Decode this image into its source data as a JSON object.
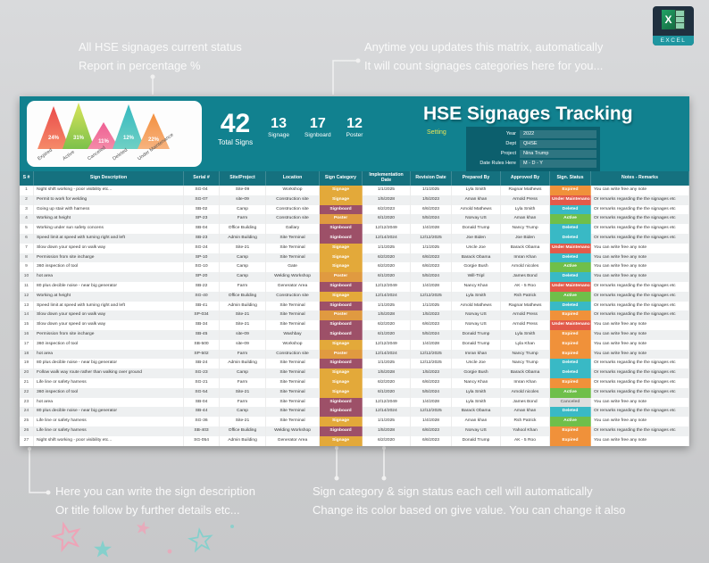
{
  "annotations": {
    "top_left_line1": "All HSE signages current status",
    "top_left_line2": "Report in percentage %",
    "top_right_line1": "Anytime you updates this matrix, automatically",
    "top_right_line2": "It will count signages categories here for you...",
    "bottom_left_line1": "Here you can write the sign description",
    "bottom_left_line2": "Or title follow by further details etc...",
    "bottom_right_line1": "Sign category & sign status each cell will automatically",
    "bottom_right_line2": "Change its color based on give value. You can change it also"
  },
  "logo": {
    "brand": "EXCEL",
    "x_glyph": "X"
  },
  "header": {
    "title": "HSE Signages Tracking",
    "setting_label": "Setting",
    "settings": [
      {
        "label": "Year",
        "value": "2022"
      },
      {
        "label": "Dept",
        "value": "QHSE"
      },
      {
        "label": "Project",
        "value": "Nina Trump"
      },
      {
        "label": "Date Rules Here",
        "value": "M - D - Y"
      }
    ],
    "stats": [
      {
        "value": "42",
        "label": "Total Signs"
      },
      {
        "value": "13",
        "label": "Signage"
      },
      {
        "value": "17",
        "label": "Signboard"
      },
      {
        "value": "12",
        "label": "Poster"
      }
    ]
  },
  "chart_data": {
    "type": "bar",
    "title": "Signage status distribution (%)",
    "categories": [
      "Expired",
      "Active",
      "Canceled",
      "Deleted",
      "Under Maintenance"
    ],
    "values": [
      24,
      31,
      11,
      12,
      22
    ],
    "value_labels": [
      "24%",
      "31%",
      "11%",
      "12%",
      "22%"
    ],
    "heights": [
      48,
      52,
      30,
      50,
      40
    ],
    "colors_top": [
      "#ea4b4b",
      "#d9e45a",
      "#ee5f93",
      "#35b9c0",
      "#f3903f"
    ],
    "colors_bottom": [
      "#f58a68",
      "#7cc14b",
      "#f48aa8",
      "#6fd0c4",
      "#f7b37f"
    ]
  },
  "colors": {
    "header_teal": "#11818f",
    "table_header": "#15717f",
    "category": {
      "Signage": "#e3a93a",
      "Signboard": "#9d5068",
      "Poster": "#e09a40"
    },
    "status": {
      "Active": "#6fbf4a",
      "Expired": "#f0913a",
      "Deleted": "#39b9c5",
      "Under Maintenance": "#e25a4a",
      "Canceled": "#dedede"
    }
  },
  "table": {
    "headers": [
      "S #",
      "Sign Description",
      "Serial #",
      "Site/Project",
      "Location",
      "Sign Category",
      "Implementation Date",
      "Revision Date",
      "Prepared By",
      "Approved By",
      "Sign. Status",
      "Notes - Remarks"
    ],
    "rows": [
      [
        "1",
        "Night shift working - poor visibility etc...",
        "SG-04",
        "Site-09",
        "Workshop",
        "Signage",
        "1/1/2025",
        "1/1/2025",
        "Lyla Smith",
        "Ragnar Mathews",
        "Expired",
        "You can write free any note"
      ],
      [
        "2",
        "Permit to work for welding",
        "SG-07",
        "site-09",
        "Construction site",
        "Signage",
        "1/5/2028",
        "1/5/2023",
        "Aman khan",
        "Arnold Press",
        "Under Maintenance",
        "Or remarks regarding the the signages etc"
      ],
      [
        "3",
        "Going up stair with harness",
        "SB-02",
        "Camp",
        "Construction site",
        "Signboard",
        "6/2/2023",
        "6/6/2023",
        "Arnold Mathews",
        "Lyla Smith",
        "Deleted",
        "Or remarks regarding the the signages etc"
      ],
      [
        "4",
        "Working at height",
        "SP-23",
        "Farm",
        "Construction site",
        "Poster",
        "6/1/2020",
        "5/5/2024",
        "Norvay US",
        "Aman khan",
        "Active",
        "Or remarks regarding the the signages etc"
      ],
      [
        "5",
        "Working under sun safety concens",
        "SB-04",
        "Office Building",
        "Gallary",
        "Signboard",
        "12/12/2049",
        "1/4/2028",
        "Donald Trump",
        "Nancy Trump",
        "Deleted",
        "Or remarks regarding the the signages etc"
      ],
      [
        "6",
        "Speed limit at speed with turning right and left",
        "SB-23",
        "Admin Building",
        "Site Terminal",
        "Signboard",
        "12/14/2024",
        "12/12/2025",
        "Joe Biden",
        "Joe Biden",
        "Deleted",
        "Or remarks regarding the the signages etc"
      ],
      [
        "7",
        "Slow down your speed on walk way",
        "SG-24",
        "Site-21",
        "Site Terminal",
        "Signage",
        "1/1/2025",
        "1/1/2025",
        "Uncle Joe",
        "Barack Obama",
        "Under Maintenance",
        "You can write free any note"
      ],
      [
        "8",
        "Permission from site incharge",
        "SP-10",
        "Camp",
        "Site Terminal",
        "Signage",
        "6/2/2020",
        "6/6/2023",
        "Barack Obama",
        "Imran Khan",
        "Deleted",
        "You can write free any note"
      ],
      [
        "9",
        "360 inspection of tool",
        "SG-10",
        "Camp",
        "Gate",
        "Signage",
        "6/2/2020",
        "6/6/2023",
        "Gorgie Bush",
        "Arnold nicoles",
        "Active",
        "You can write free any note"
      ],
      [
        "10",
        "hot area",
        "SP-20",
        "Camp",
        "Welding Workshop",
        "Poster",
        "6/1/2020",
        "5/5/2024",
        "Will-Tripl",
        "James Bond",
        "Deleted",
        "You can write free any note"
      ],
      [
        "11",
        "80 plus decible noise - near big generator",
        "SB-22",
        "Farm",
        "Generator Area",
        "Signboard",
        "12/12/2049",
        "1/4/2028",
        "Nancy Khan",
        "AK - 5 Roo",
        "Under Maintenance",
        "Or remarks regarding the the signages etc"
      ],
      [
        "12",
        "Working at height",
        "SG-40",
        "Office Building",
        "Construction site",
        "Signage",
        "12/14/2024",
        "12/12/2025",
        "Lyla Smith",
        "Rsh Patrick",
        "Active",
        "Or remarks regarding the the signages etc"
      ],
      [
        "13",
        "Speed limit at speed with turning right and left",
        "SB-41",
        "Admin Building",
        "Site Terminal",
        "Signboard",
        "1/1/2025",
        "1/1/2025",
        "Arnold Mathews",
        "Ragnar Mathews",
        "Deleted",
        "Or remarks regarding the the signages etc"
      ],
      [
        "14",
        "Slow down your speed on walk way",
        "SP-034",
        "Site-21",
        "Site Terminal",
        "Poster",
        "1/5/2028",
        "1/5/2023",
        "Norvay US",
        "Arnold Press",
        "Expired",
        "Or remarks regarding the the signages etc"
      ],
      [
        "15",
        "Slow down your speed on walk way",
        "SB-34",
        "Site-21",
        "Site Terminal",
        "Signboard",
        "6/2/2020",
        "6/6/2023",
        "Norvay US",
        "Arnold Press",
        "Under Maintenance",
        "You can write free any note"
      ],
      [
        "16",
        "Permission from site incharge",
        "SB-45",
        "site-09",
        "Washbay",
        "Signboard",
        "6/1/2020",
        "5/5/2024",
        "Donald Trump",
        "Lyla Smith",
        "Expired",
        "You can write free any note"
      ],
      [
        "17",
        "360 inspection of tool",
        "SB-500",
        "site-09",
        "Workshop",
        "Signage",
        "12/12/2049",
        "1/4/2028",
        "Donald Trump",
        "Lyla Khan",
        "Expired",
        "You can write free any note"
      ],
      [
        "18",
        "hot area",
        "SP-502",
        "Farm",
        "Construction site",
        "Poster",
        "12/14/2024",
        "12/12/2025",
        "Imran khan",
        "Nancy Trump",
        "Expired",
        "You can write free any note"
      ],
      [
        "19",
        "80 plus decible noise - near big generator",
        "SB-24",
        "Admin Building",
        "Site Terminal",
        "Signboard",
        "1/1/2025",
        "12/12/2025",
        "Uncle Joe",
        "Nancy Trump",
        "Deleted",
        "Or remarks regarding the the signages etc"
      ],
      [
        "20",
        "Follow walk way route rather than walking over ground",
        "SG-23",
        "Camp",
        "Site Terminal",
        "Signage",
        "1/5/2028",
        "1/5/2023",
        "Gorgie Bush",
        "Barack Obama",
        "Deleted",
        "Or remarks regarding the the signages etc"
      ],
      [
        "21",
        "Life line or safety harness",
        "SG-21",
        "Farm",
        "Site Terminal",
        "Signage",
        "6/2/2020",
        "6/6/2023",
        "Nancy Khan",
        "Imran Khan",
        "Expired",
        "Or remarks regarding the the signages etc"
      ],
      [
        "22",
        "360 inspection of tool",
        "SG-54",
        "Site-21",
        "Site Terminal",
        "Signage",
        "6/1/2020",
        "5/5/2024",
        "Lyla Smith",
        "Arnold nicoles",
        "Active",
        "Or remarks regarding the the signages etc"
      ],
      [
        "23",
        "hot area",
        "SB-04",
        "Farm",
        "Site Terminal",
        "Signboard",
        "12/12/2049",
        "1/4/2028",
        "Lyla Smith",
        "James Bond",
        "Canceled",
        "You can write free any note"
      ],
      [
        "24",
        "80 plus decible noise - near big generator",
        "SB-44",
        "Camp",
        "Site Terminal",
        "Signboard",
        "12/14/2024",
        "12/12/2025",
        "Barack Obama",
        "Aman khan",
        "Deleted",
        "Or remarks regarding the the signages etc"
      ],
      [
        "25",
        "Life line or safety harness",
        "SG-36",
        "Site-21",
        "Site Terminal",
        "Signage",
        "1/1/2025",
        "1/4/2028",
        "Aman khan",
        "Rsh Patrick",
        "Active",
        "You can write free any note"
      ],
      [
        "26",
        "Life line or safety harness",
        "SB-403",
        "Office Building",
        "Welding Workshop",
        "Signboard",
        "1/5/2028",
        "6/6/2023",
        "Norvay US",
        "Yahool Khan",
        "Expired",
        "Or remarks regarding the the signages etc"
      ],
      [
        "27",
        "Night shift working - poor visibility etc...",
        "SG-054",
        "Admin Building",
        "Generator Area",
        "Signage",
        "6/2/2020",
        "6/6/2023",
        "Donald Trump",
        "AK - 5 Roo",
        "Expired",
        "You can write free any note"
      ]
    ]
  }
}
